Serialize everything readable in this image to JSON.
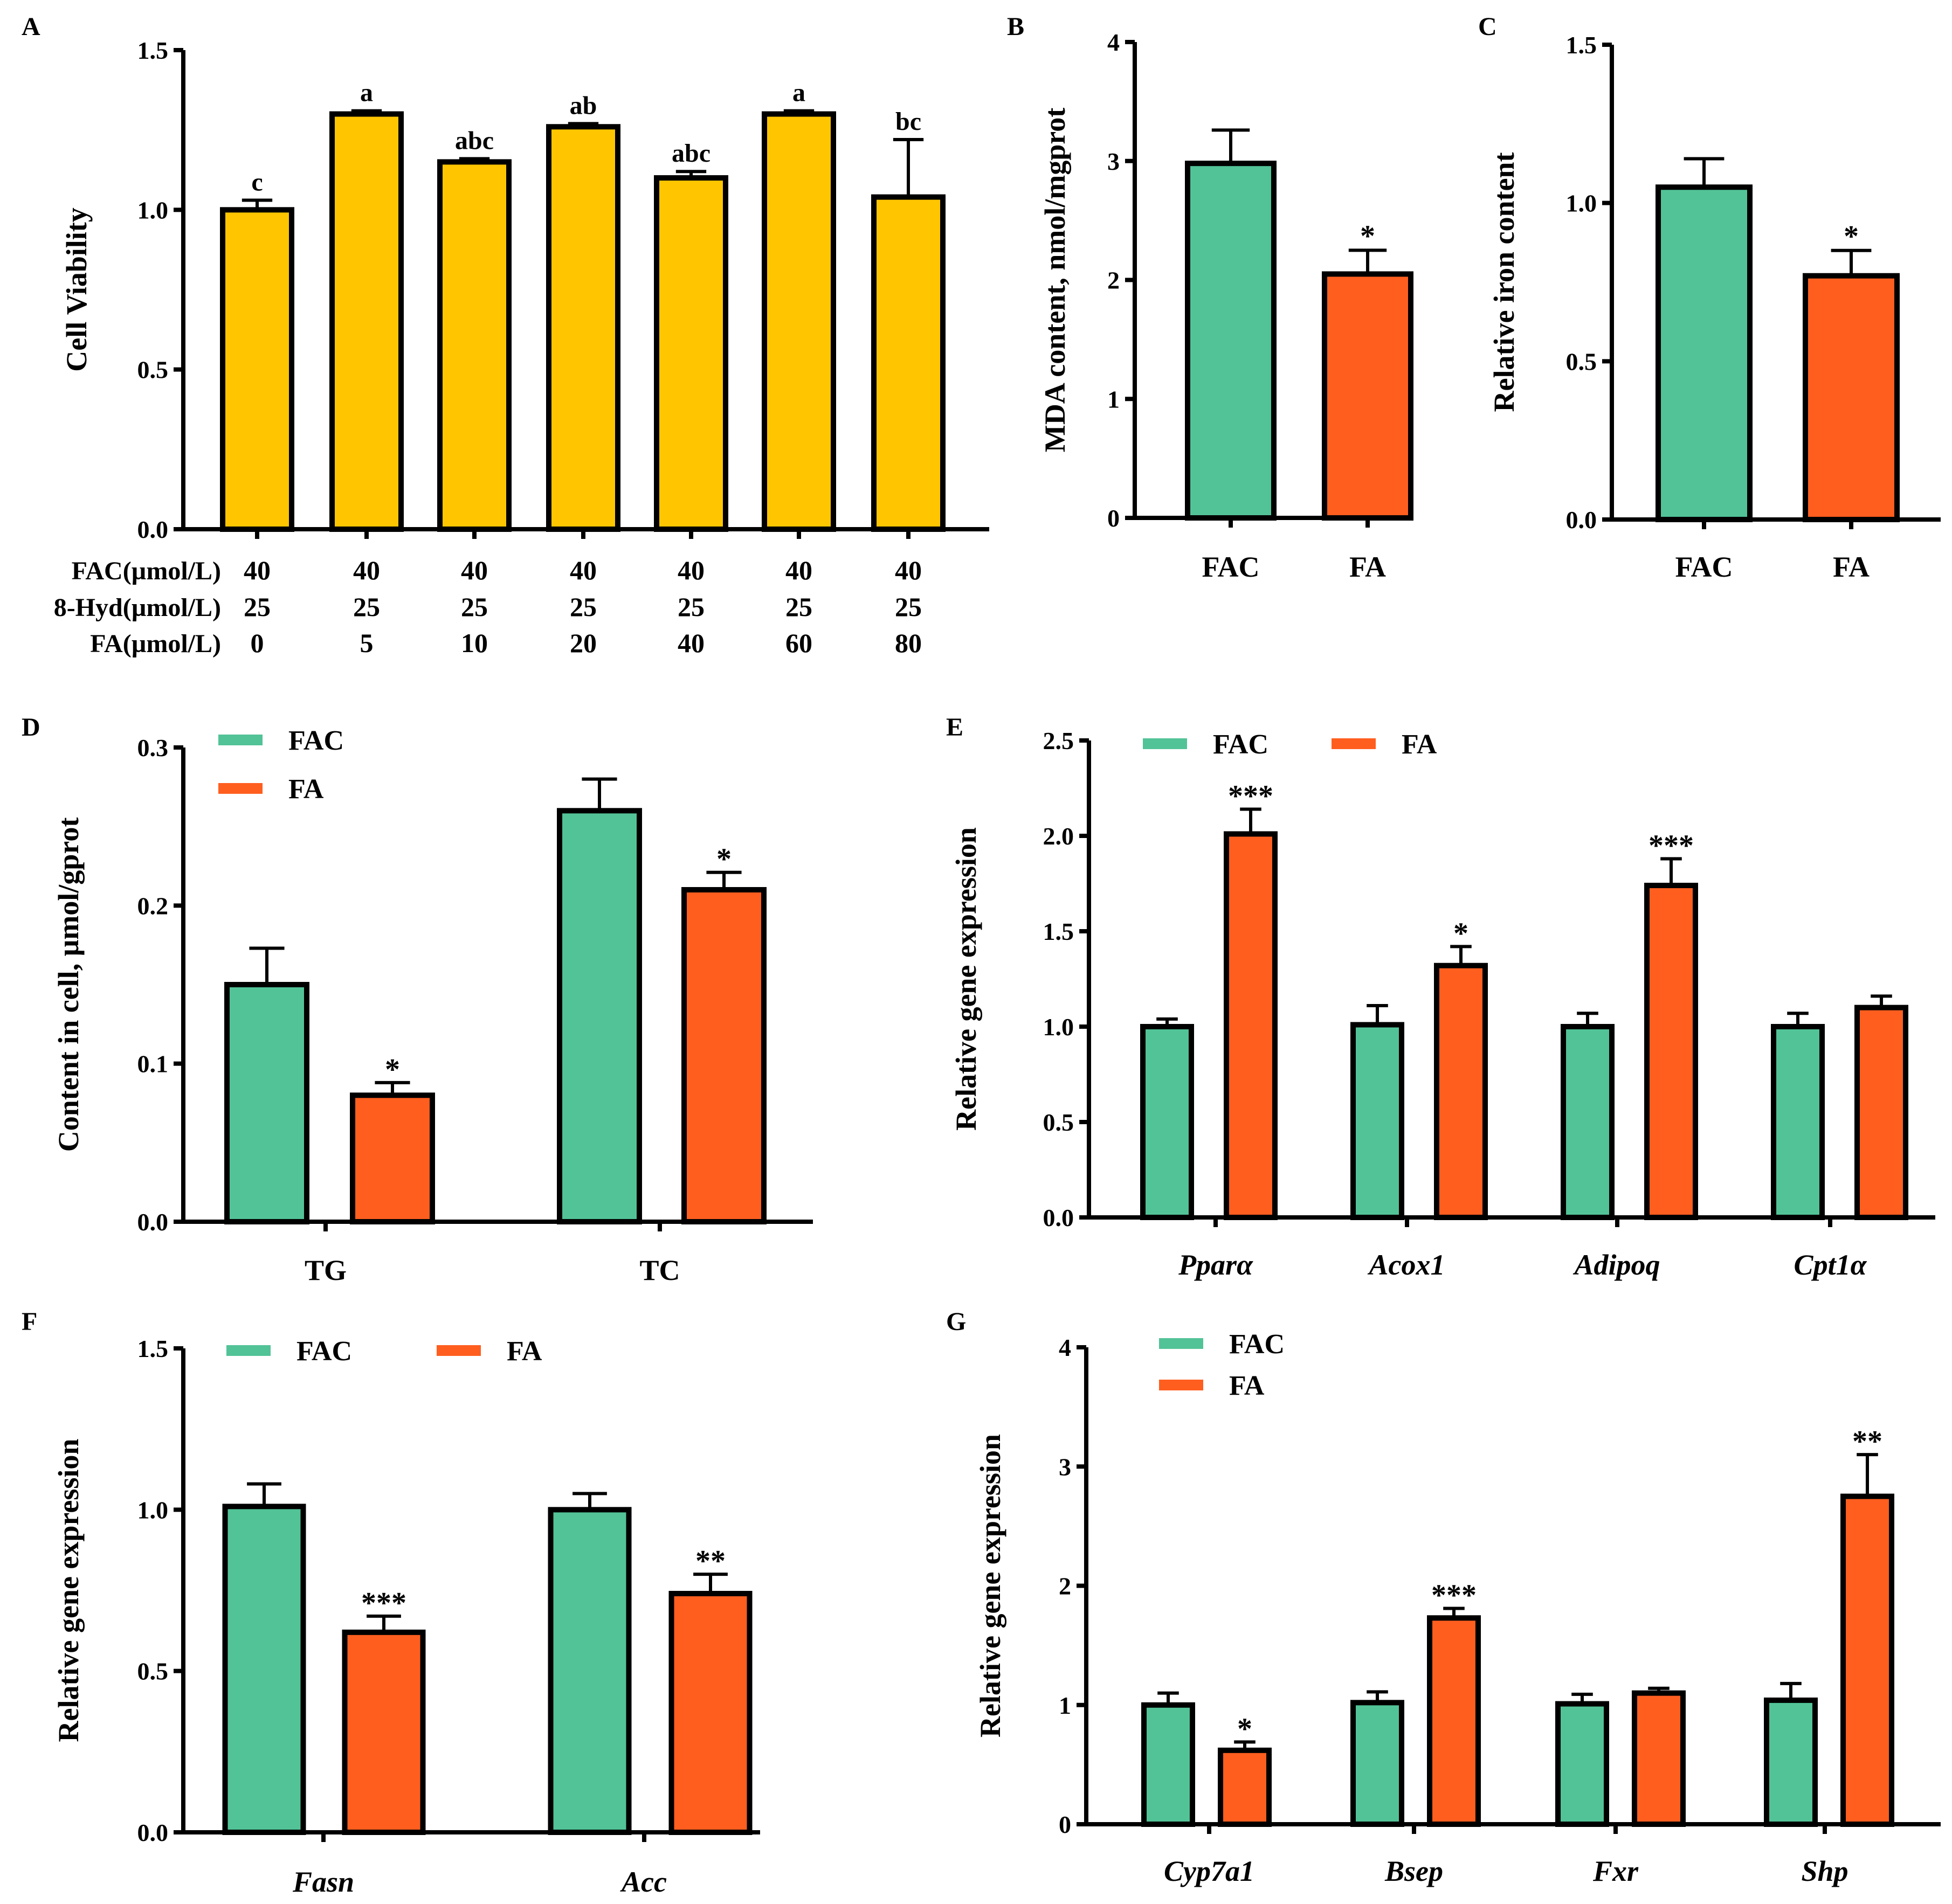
{
  "colors": {
    "FAC": "#52C397",
    "FA": "#FF5E1F",
    "viability": "#FFC600"
  },
  "chart_data": [
    {
      "panel": "A",
      "type": "bar",
      "ylabel": "Cell Viability",
      "ylim": [
        0,
        1.5
      ],
      "yticks": [
        "0.0",
        "0.5",
        "1.0",
        "1.5"
      ],
      "values": [
        1.0,
        1.3,
        1.15,
        1.26,
        1.1,
        1.3,
        1.04
      ],
      "errors": [
        0.03,
        0.01,
        0.01,
        0.01,
        0.02,
        0.01,
        0.18
      ],
      "letters": [
        "c",
        "a",
        "abc",
        "ab",
        "abc",
        "a",
        "bc"
      ],
      "table": {
        "rows": [
          {
            "label": "FAC(µmol/L)",
            "values": [
              "40",
              "40",
              "40",
              "40",
              "40",
              "40",
              "40"
            ]
          },
          {
            "label": "8-Hyd(µmol/L)",
            "values": [
              "25",
              "25",
              "25",
              "25",
              "25",
              "25",
              "25"
            ]
          },
          {
            "label": "FA(µmol/L)",
            "values": [
              "0",
              "5",
              "10",
              "20",
              "40",
              "60",
              "80"
            ]
          }
        ]
      }
    },
    {
      "panel": "B",
      "type": "bar",
      "ylabel": "MDA content, nmol/mgprot",
      "ylim": [
        0,
        4
      ],
      "yticks": [
        "0",
        "1",
        "2",
        "3",
        "4"
      ],
      "categories": [
        "FAC",
        "FA"
      ],
      "values": [
        2.98,
        2.05
      ],
      "errors": [
        0.28,
        0.2
      ],
      "sig": [
        "",
        "*"
      ]
    },
    {
      "panel": "C",
      "type": "bar",
      "ylabel": "Relative iron content",
      "ylim": [
        0,
        1.5
      ],
      "yticks": [
        "0.0",
        "0.5",
        "1.0",
        "1.5"
      ],
      "categories": [
        "FAC",
        "FA"
      ],
      "values": [
        1.05,
        0.77
      ],
      "errors": [
        0.09,
        0.08
      ],
      "sig": [
        "",
        "*"
      ]
    },
    {
      "panel": "D",
      "type": "bar",
      "ylabel": "Content in cell, μmol/gprot",
      "ylim": [
        0,
        0.3
      ],
      "yticks": [
        "0.0",
        "0.1",
        "0.2",
        "0.3"
      ],
      "categories": [
        "TG",
        "TC"
      ],
      "legend": [
        "FAC",
        "FA"
      ],
      "series": [
        {
          "name": "FAC",
          "values": [
            0.15,
            0.26
          ],
          "errors": [
            0.023,
            0.02
          ],
          "sig": [
            "",
            ""
          ]
        },
        {
          "name": "FA",
          "values": [
            0.08,
            0.21
          ],
          "errors": [
            0.008,
            0.011
          ],
          "sig": [
            "*",
            "*"
          ]
        }
      ]
    },
    {
      "panel": "E",
      "type": "bar",
      "ylabel": "Relative gene expression",
      "ylim": [
        0,
        2.5
      ],
      "yticks": [
        "0.0",
        "0.5",
        "1.0",
        "1.5",
        "2.0",
        "2.5"
      ],
      "categories": [
        "Pparα",
        "Acox1",
        "Adipoq",
        "Cpt1α"
      ],
      "legend": [
        "FAC",
        "FA"
      ],
      "series": [
        {
          "name": "FAC",
          "values": [
            1.0,
            1.01,
            1.0,
            1.0
          ],
          "errors": [
            0.04,
            0.1,
            0.07,
            0.07
          ],
          "sig": [
            "",
            "",
            "",
            ""
          ]
        },
        {
          "name": "FA",
          "values": [
            2.01,
            1.32,
            1.74,
            1.1
          ],
          "errors": [
            0.13,
            0.1,
            0.14,
            0.06
          ],
          "sig": [
            "***",
            "*",
            "***",
            ""
          ]
        }
      ]
    },
    {
      "panel": "F",
      "type": "bar",
      "ylabel": "Relative gene expression",
      "ylim": [
        0,
        1.5
      ],
      "yticks": [
        "0.0",
        "0.5",
        "1.0",
        "1.5"
      ],
      "categories": [
        "Fasn",
        "Acc"
      ],
      "legend": [
        "FAC",
        "FA"
      ],
      "series": [
        {
          "name": "FAC",
          "values": [
            1.01,
            1.0
          ],
          "errors": [
            0.07,
            0.05
          ],
          "sig": [
            "",
            ""
          ]
        },
        {
          "name": "FA",
          "values": [
            0.62,
            0.74
          ],
          "errors": [
            0.05,
            0.06
          ],
          "sig": [
            "***",
            "**"
          ]
        }
      ]
    },
    {
      "panel": "G",
      "type": "bar",
      "ylabel": "Relative gene expression",
      "ylim": [
        0,
        4
      ],
      "yticks": [
        "0",
        "1",
        "2",
        "3",
        "4"
      ],
      "categories": [
        "Cyp7a1",
        "Bsep",
        "Fxr",
        "Shp"
      ],
      "legend": [
        "FAC",
        "FA"
      ],
      "series": [
        {
          "name": "FAC",
          "values": [
            1.0,
            1.02,
            1.01,
            1.04
          ],
          "errors": [
            0.1,
            0.09,
            0.08,
            0.14
          ],
          "sig": [
            "",
            "",
            "",
            ""
          ]
        },
        {
          "name": "FA",
          "values": [
            0.62,
            1.73,
            1.1,
            2.75
          ],
          "errors": [
            0.07,
            0.08,
            0.04,
            0.35
          ],
          "sig": [
            "*",
            "***",
            "",
            "**"
          ]
        }
      ]
    }
  ]
}
